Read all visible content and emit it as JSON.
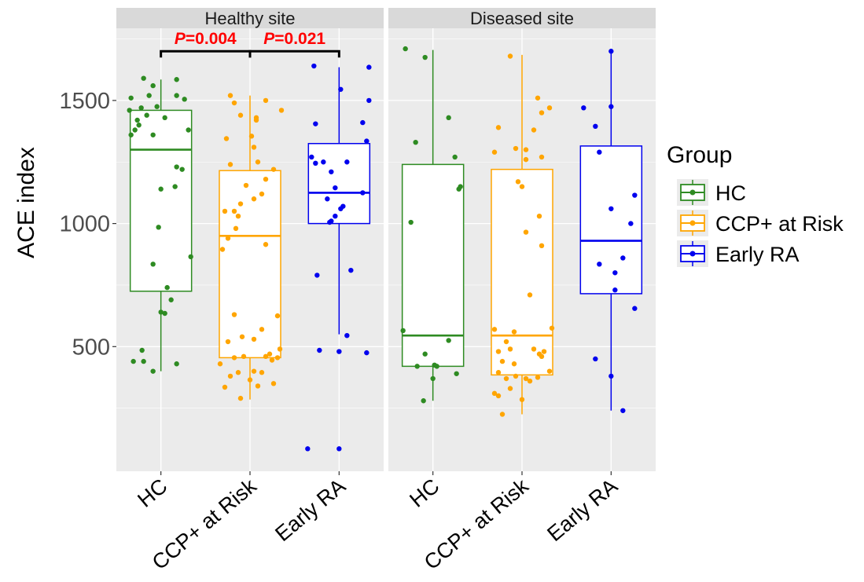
{
  "chart_data": {
    "type": "box",
    "ylabel": "ACE index",
    "xlabel": "",
    "ylim": [
      0,
      1800
    ],
    "yticks": [
      500,
      1000,
      1500
    ],
    "categories": [
      "HC",
      "CCP+ at Risk",
      "Early RA"
    ],
    "legend": {
      "title": "Group",
      "position": "right",
      "entries": [
        "HC",
        "CCP+ at Risk",
        "Early RA"
      ]
    },
    "colors": {
      "HC": "#2e8b22",
      "CCP+ at Risk": "#ffa500",
      "Early RA": "#0000ee",
      "panel_bg": "#ebebeb",
      "strip_bg": "#d9d9d9",
      "significance": "#ff0000"
    },
    "grid": true,
    "panels": [
      {
        "strip": "Healthy site",
        "annotations": [
          {
            "from": "HC",
            "to": "CCP+ at Risk",
            "p_label": "P",
            "p_value": "=0.004",
            "y": 1700
          },
          {
            "from": "CCP+ at Risk",
            "to": "Early RA",
            "p_label": "P",
            "p_value": "=0.021",
            "y": 1700
          }
        ],
        "groups": [
          {
            "name": "HC",
            "box": {
              "whisker_low": 400,
              "q1": 725,
              "median": 1300,
              "q3": 1460,
              "whisker_high": 1585
            },
            "points": [
              [
                -0.35,
                440
              ],
              [
                -0.22,
                440
              ],
              [
                -0.24,
                485
              ],
              [
                -0.1,
                400
              ],
              [
                0.2,
                430
              ],
              [
                0.13,
                690
              ],
              [
                0.0,
                640
              ],
              [
                0.05,
                635
              ],
              [
                0.08,
                740
              ],
              [
                0.38,
                865
              ],
              [
                -0.1,
                835
              ],
              [
                -0.03,
                985
              ],
              [
                0.0,
                1140
              ],
              [
                0.18,
                1150
              ],
              [
                0.2,
                1230
              ],
              [
                0.27,
                1220
              ],
              [
                -0.38,
                1360
              ],
              [
                -0.33,
                1380
              ],
              [
                -0.28,
                1400
              ],
              [
                -0.1,
                1360
              ],
              [
                -0.3,
                1420
              ],
              [
                -0.18,
                1440
              ],
              [
                0.05,
                1430
              ],
              [
                0.35,
                1380
              ],
              [
                -0.4,
                1460
              ],
              [
                -0.25,
                1470
              ],
              [
                -0.05,
                1475
              ],
              [
                -0.38,
                1510
              ],
              [
                -0.15,
                1520
              ],
              [
                0.2,
                1520
              ],
              [
                0.3,
                1505
              ],
              [
                -0.1,
                1560
              ],
              [
                -0.22,
                1590
              ],
              [
                0.2,
                1585
              ]
            ]
          },
          {
            "name": "CCP+ at Risk",
            "box": {
              "whisker_low": 285,
              "q1": 455,
              "median": 950,
              "q3": 1215,
              "whisker_high": 1520
            },
            "points": [
              [
                -0.38,
                430
              ],
              [
                -0.32,
                335
              ],
              [
                -0.12,
                290
              ],
              [
                0.0,
                365
              ],
              [
                0.1,
                340
              ],
              [
                0.3,
                350
              ],
              [
                -0.25,
                380
              ],
              [
                -0.15,
                395
              ],
              [
                0.05,
                400
              ],
              [
                0.15,
                395
              ],
              [
                -0.2,
                455
              ],
              [
                -0.08,
                460
              ],
              [
                0.2,
                460
              ],
              [
                0.28,
                445
              ],
              [
                0.35,
                455
              ],
              [
                0.25,
                470
              ],
              [
                0.38,
                490
              ],
              [
                -0.1,
                540
              ],
              [
                0.05,
                530
              ],
              [
                -0.28,
                520
              ],
              [
                0.35,
                625
              ],
              [
                -0.2,
                630
              ],
              [
                0.15,
                570
              ],
              [
                -0.35,
                895
              ],
              [
                -0.28,
                940
              ],
              [
                -0.18,
                980
              ],
              [
                0.2,
                915
              ],
              [
                -0.32,
                1050
              ],
              [
                -0.2,
                1050
              ],
              [
                -0.15,
                1030
              ],
              [
                -0.12,
                1080
              ],
              [
                0.05,
                1100
              ],
              [
                0.15,
                1120
              ],
              [
                -0.05,
                1155
              ],
              [
                0.2,
                1180
              ],
              [
                0.3,
                1220
              ],
              [
                -0.25,
                1240
              ],
              [
                0.1,
                1250
              ],
              [
                0.05,
                1310
              ],
              [
                0.02,
                1355
              ],
              [
                -0.3,
                1345
              ],
              [
                0.08,
                1420
              ],
              [
                -0.2,
                1490
              ],
              [
                0.2,
                1500
              ],
              [
                -0.25,
                1520
              ],
              [
                0.4,
                1460
              ],
              [
                0.08,
                1430
              ],
              [
                -0.12,
                1440
              ]
            ]
          },
          {
            "name": "Early RA",
            "box": {
              "whisker_low": 550,
              "q1": 1000,
              "median": 1125,
              "q3": 1325,
              "whisker_high": 1635
            },
            "points": [
              [
                -0.4,
                85
              ],
              [
                0.0,
                85
              ],
              [
                -0.25,
                485
              ],
              [
                0.0,
                480
              ],
              [
                0.1,
                545
              ],
              [
                0.35,
                475
              ],
              [
                -0.28,
                790
              ],
              [
                0.15,
                810
              ],
              [
                -0.12,
                1005
              ],
              [
                -0.1,
                1010
              ],
              [
                -0.05,
                1030
              ],
              [
                0.02,
                1060
              ],
              [
                0.05,
                1070
              ],
              [
                0.3,
                1125
              ],
              [
                -0.15,
                1100
              ],
              [
                -0.35,
                1270
              ],
              [
                -0.3,
                1245
              ],
              [
                -0.2,
                1250
              ],
              [
                -0.1,
                1210
              ],
              [
                0.1,
                1250
              ],
              [
                -0.05,
                1145
              ],
              [
                -0.3,
                1405
              ],
              [
                0.3,
                1410
              ],
              [
                0.38,
                1500
              ],
              [
                0.35,
                1335
              ],
              [
                0.02,
                1545
              ],
              [
                -0.32,
                1640
              ],
              [
                0.38,
                1635
              ]
            ]
          }
        ]
      },
      {
        "strip": "Diseased site",
        "annotations": [],
        "groups": [
          {
            "name": "HC",
            "box": {
              "whisker_low": 280,
              "q1": 420,
              "median": 545,
              "q3": 1240,
              "whisker_high": 1705
            },
            "points": [
              [
                -0.12,
                280
              ],
              [
                0.0,
                370
              ],
              [
                -0.2,
                420
              ],
              [
                -0.1,
                470
              ],
              [
                0.02,
                425
              ],
              [
                0.05,
                420
              ],
              [
                0.3,
                390
              ],
              [
                0.2,
                525
              ],
              [
                -0.38,
                565
              ],
              [
                -0.28,
                1005
              ],
              [
                0.33,
                1140
              ],
              [
                0.35,
                1150
              ],
              [
                0.28,
                1270
              ],
              [
                -0.22,
                1330
              ],
              [
                0.2,
                1430
              ],
              [
                -0.35,
                1710
              ],
              [
                -0.1,
                1675
              ]
            ]
          },
          {
            "name": "CCP+ at Risk",
            "box": {
              "whisker_low": 225,
              "q1": 385,
              "median": 545,
              "q3": 1220,
              "whisker_high": 1685
            },
            "points": [
              [
                -0.25,
                225
              ],
              [
                -0.3,
                300
              ],
              [
                -0.35,
                310
              ],
              [
                -0.15,
                330
              ],
              [
                0.0,
                285
              ],
              [
                -0.2,
                370
              ],
              [
                -0.08,
                380
              ],
              [
                0.05,
                370
              ],
              [
                0.1,
                360
              ],
              [
                0.2,
                375
              ],
              [
                -0.3,
                395
              ],
              [
                0.35,
                400
              ],
              [
                -0.25,
                440
              ],
              [
                -0.1,
                430
              ],
              [
                0.25,
                460
              ],
              [
                -0.3,
                480
              ],
              [
                0.22,
                470
              ],
              [
                0.28,
                480
              ],
              [
                -0.15,
                490
              ],
              [
                0.15,
                490
              ],
              [
                -0.2,
                520
              ],
              [
                -0.35,
                570
              ],
              [
                0.38,
                575
              ],
              [
                -0.1,
                560
              ],
              [
                0.1,
                710
              ],
              [
                0.35,
                1470
              ],
              [
                0.2,
                1510
              ],
              [
                0.25,
                1450
              ],
              [
                0.05,
                1300
              ],
              [
                -0.08,
                1305
              ],
              [
                -0.3,
                1390
              ],
              [
                -0.35,
                1290
              ],
              [
                0.15,
                1380
              ],
              [
                0.05,
                1260
              ],
              [
                0.25,
                1270
              ],
              [
                -0.05,
                1170
              ],
              [
                0.0,
                1150
              ],
              [
                -0.15,
                1680
              ],
              [
                0.22,
                1030
              ],
              [
                0.05,
                965
              ],
              [
                0.25,
                910
              ]
            ]
          },
          {
            "name": "Early RA",
            "box": {
              "whisker_low": 240,
              "q1": 715,
              "median": 930,
              "q3": 1315,
              "whisker_high": 1700
            },
            "points": [
              [
                0.15,
                240
              ],
              [
                0.0,
                380
              ],
              [
                -0.2,
                450
              ],
              [
                0.05,
                730
              ],
              [
                0.3,
                655
              ],
              [
                0.05,
                800
              ],
              [
                -0.15,
                835
              ],
              [
                0.15,
                860
              ],
              [
                0.25,
                1000
              ],
              [
                0.0,
                1060
              ],
              [
                0.3,
                1115
              ],
              [
                -0.15,
                1290
              ],
              [
                -0.35,
                1470
              ],
              [
                -0.2,
                1395
              ],
              [
                0.0,
                1475
              ],
              [
                0.0,
                1700
              ]
            ]
          }
        ]
      }
    ]
  }
}
